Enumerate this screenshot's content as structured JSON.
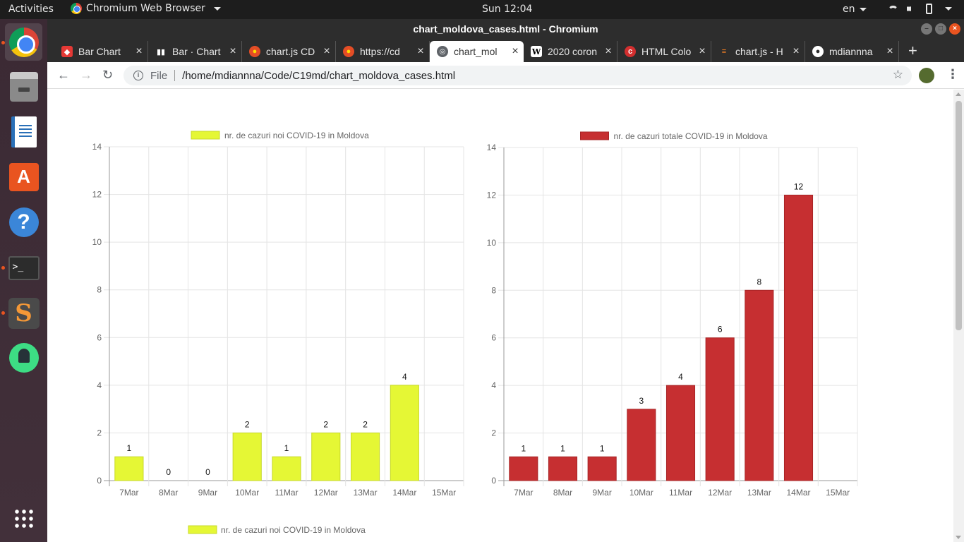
{
  "topbar": {
    "activities": "Activities",
    "app_name": "Chromium Web Browser",
    "clock": "Sun 12:04",
    "language": "en"
  },
  "dock": {
    "items": [
      "chromium",
      "files",
      "libreoffice-writer",
      "ubuntu-software",
      "help",
      "terminal",
      "sublime-text",
      "android-studio",
      "show-applications"
    ]
  },
  "window": {
    "title": "chart_moldova_cases.html - Chromium"
  },
  "tabs": [
    {
      "label": "Bar Chart",
      "icon": "codepen-icon",
      "active": false
    },
    {
      "label": "Bar · Chart",
      "icon": "book-icon",
      "active": false
    },
    {
      "label": "chart.js CD",
      "icon": "shield-icon",
      "active": false
    },
    {
      "label": "https://cd",
      "icon": "shield-icon",
      "active": false
    },
    {
      "label": "chart_mol",
      "icon": "globe-icon",
      "active": true
    },
    {
      "label": "2020 coron",
      "icon": "wikipedia-icon",
      "active": false
    },
    {
      "label": "HTML Colo",
      "icon": "html-icon",
      "active": false
    },
    {
      "label": "chart.js - H",
      "icon": "stackoverflow-icon",
      "active": false
    },
    {
      "label": "mdiannna",
      "icon": "github-icon",
      "active": false
    }
  ],
  "toolbar": {
    "file_label": "File",
    "url": "/home/mdiannna/Code/C19md/chart_moldova_cases.html"
  },
  "chart_data": [
    {
      "type": "bar",
      "legend": "nr. de cazuri noi COVID-19 in Moldova",
      "color": "#e5f735",
      "border": "#c7d82a",
      "categories": [
        "7Mar",
        "8Mar",
        "9Mar",
        "10Mar",
        "11Mar",
        "12Mar",
        "13Mar",
        "14Mar",
        "15Mar"
      ],
      "values": [
        1,
        0,
        0,
        2,
        1,
        2,
        2,
        4,
        null
      ],
      "data_labels": [
        "1",
        "0",
        "0",
        "2",
        "1",
        "2",
        "2",
        "4",
        ""
      ],
      "ylim": [
        0,
        14
      ],
      "yticks": [
        "0",
        "2",
        "4",
        "6",
        "8",
        "10",
        "12",
        "14"
      ],
      "grid": true,
      "legend_position": "top"
    },
    {
      "type": "bar",
      "legend": "nr. de cazuri totale COVID-19 in Moldova",
      "color": "#c62f31",
      "border": "#a82426",
      "categories": [
        "7Mar",
        "8Mar",
        "9Mar",
        "10Mar",
        "11Mar",
        "12Mar",
        "13Mar",
        "14Mar",
        "15Mar"
      ],
      "values": [
        1,
        1,
        1,
        3,
        4,
        6,
        8,
        12,
        null
      ],
      "data_labels": [
        "1",
        "1",
        "1",
        "3",
        "4",
        "6",
        "8",
        "12",
        ""
      ],
      "ylim": [
        0,
        14
      ],
      "yticks": [
        "0",
        "2",
        "4",
        "6",
        "8",
        "10",
        "12",
        "14"
      ],
      "grid": true,
      "legend_position": "top"
    }
  ],
  "third_chart_legend": {
    "label": "nr. de cazuri noi COVID-19 in Moldova",
    "color": "#e5f735"
  }
}
